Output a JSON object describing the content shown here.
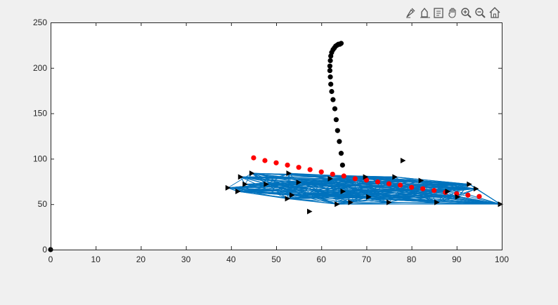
{
  "toolbar": {
    "buttons": [
      "brush-icon",
      "data-tips-icon",
      "export-icon",
      "pan-icon",
      "zoom-in-icon",
      "zoom-out-icon",
      "home-icon"
    ]
  },
  "colors": {
    "figure_background": "#f0f0f0",
    "axes_background": "#ffffff",
    "line_series": "#0072bd",
    "black_series": "#000000",
    "red_series": "#ff0000"
  },
  "chart_data": {
    "type": "scatter",
    "title": "",
    "xlabel": "",
    "ylabel": "",
    "xlim": [
      0,
      100
    ],
    "ylim": [
      0,
      250
    ],
    "grid": false,
    "legend": "none",
    "xticks": [
      "0",
      "10",
      "20",
      "30",
      "40",
      "50",
      "60",
      "70",
      "80",
      "90",
      "100"
    ],
    "yticks": [
      "0",
      "50",
      "100",
      "150",
      "200",
      "250"
    ],
    "series": [
      {
        "marker": "circle",
        "color": "#000000",
        "x": [
          0,
          64.7,
          64.4,
          64.0,
          63.6,
          63.3,
          63.0,
          62.6,
          62.3,
          62.1,
          62.0,
          61.9,
          61.9,
          62.0,
          62.1,
          62.3,
          62.6,
          62.9,
          63.2,
          63.5,
          63.8,
          64.1,
          64.4
        ],
        "y": [
          0,
          93,
          106,
          119,
          131,
          143,
          155,
          165,
          174,
          182,
          190,
          197,
          202,
          208,
          213,
          217,
          220,
          222,
          224,
          225,
          226,
          226,
          227
        ]
      },
      {
        "marker": "circle",
        "color": "#ff0000",
        "x": [
          45,
          47.5,
          50,
          52.5,
          55,
          57.5,
          60,
          62.5,
          65,
          67.5,
          70,
          72.5,
          75,
          77.5,
          80,
          82.5,
          85,
          87.5,
          90,
          92.5,
          95
        ],
        "y": [
          101,
          98,
          95.5,
          93,
          90.5,
          88,
          85.5,
          83,
          81,
          78,
          76.5,
          74.5,
          72.5,
          71,
          68.5,
          67,
          65,
          63,
          61.5,
          60,
          58.5
        ]
      },
      {
        "marker": "triangle-right",
        "color": "#000000",
        "x": [
          39.3,
          41.5,
          42.1,
          43.1,
          44.6,
          47.8,
          52.5,
          52.8,
          53.5,
          55.0,
          57.4,
          62.0,
          63.5,
          64.8,
          66.5,
          69.8,
          70.5,
          75.0,
          76.3,
          78.1,
          82.1,
          85.6,
          88.0,
          90.2,
          92.8,
          94.3,
          99.7
        ],
        "y": [
          68,
          64,
          80,
          72,
          84,
          72,
          56,
          84,
          60,
          74,
          42,
          78,
          50,
          64,
          52,
          80,
          58,
          52,
          80,
          98,
          76,
          52,
          64,
          58,
          72,
          67,
          50
        ]
      },
      {
        "type": "line",
        "color": "#0072bd",
        "x": [
          39.3,
          41.5,
          52.8,
          62.0,
          76.3,
          92.8,
          99.7,
          94.3,
          85.6,
          63.5,
          52.5,
          42.1,
          57.4,
          69.8,
          82.1,
          90.2,
          78.1,
          66.5,
          55.0,
          43.1,
          99.7,
          64.8,
          44.6,
          92.8,
          75.0,
          53.5,
          88.0,
          70.5,
          41.5,
          94.3,
          47.8,
          85.6,
          62.0,
          39.3,
          92.8,
          52.5,
          82.1,
          63.5,
          44.6,
          99.7,
          57.4,
          76.3,
          42.1,
          90.2,
          55.0,
          69.8,
          85.6,
          41.5,
          92.8
        ],
        "y": [
          68,
          64,
          84,
          78,
          80,
          72,
          50,
          67,
          52,
          50,
          56,
          80,
          60,
          80,
          76,
          58,
          70,
          52,
          74,
          72,
          50,
          64,
          84,
          72,
          52,
          60,
          64,
          58,
          64,
          67,
          72,
          52,
          78,
          68,
          72,
          56,
          76,
          50,
          84,
          50,
          62,
          80,
          80,
          58,
          74,
          80,
          52,
          64,
          72
        ]
      }
    ]
  }
}
